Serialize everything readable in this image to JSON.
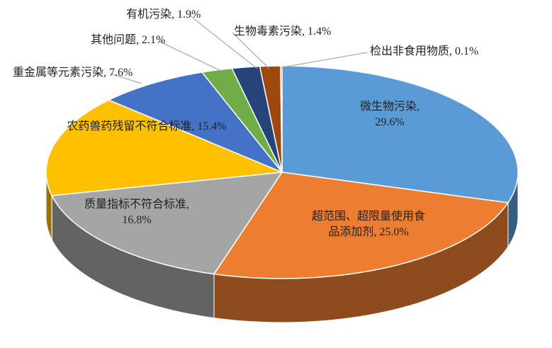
{
  "chart_data": {
    "type": "pie",
    "values": [
      29.6,
      25.0,
      16.8,
      15.4,
      7.6,
      2.1,
      1.9,
      1.4,
      0.1
    ],
    "value_labels": [
      "微生物污染, 29.6%",
      "超范围、超限量使用食品添加剂, 25.0%",
      "质量指标不符合标准, 16.8%",
      "农药兽药残留不符合标准, 15.4%",
      "重金属等元素污染, 7.6%",
      "其他问题, 2.1%",
      "有机污染, 1.9%",
      "生物毒素污染, 1.4%",
      "检出非食用物质, 0.1%"
    ],
    "colors": [
      "#5b9bd5",
      "#ed7d31",
      "#a5a5a5",
      "#ffc000",
      "#4472c4",
      "#70ad47",
      "#264478",
      "#9e480e",
      "#636363"
    ]
  }
}
